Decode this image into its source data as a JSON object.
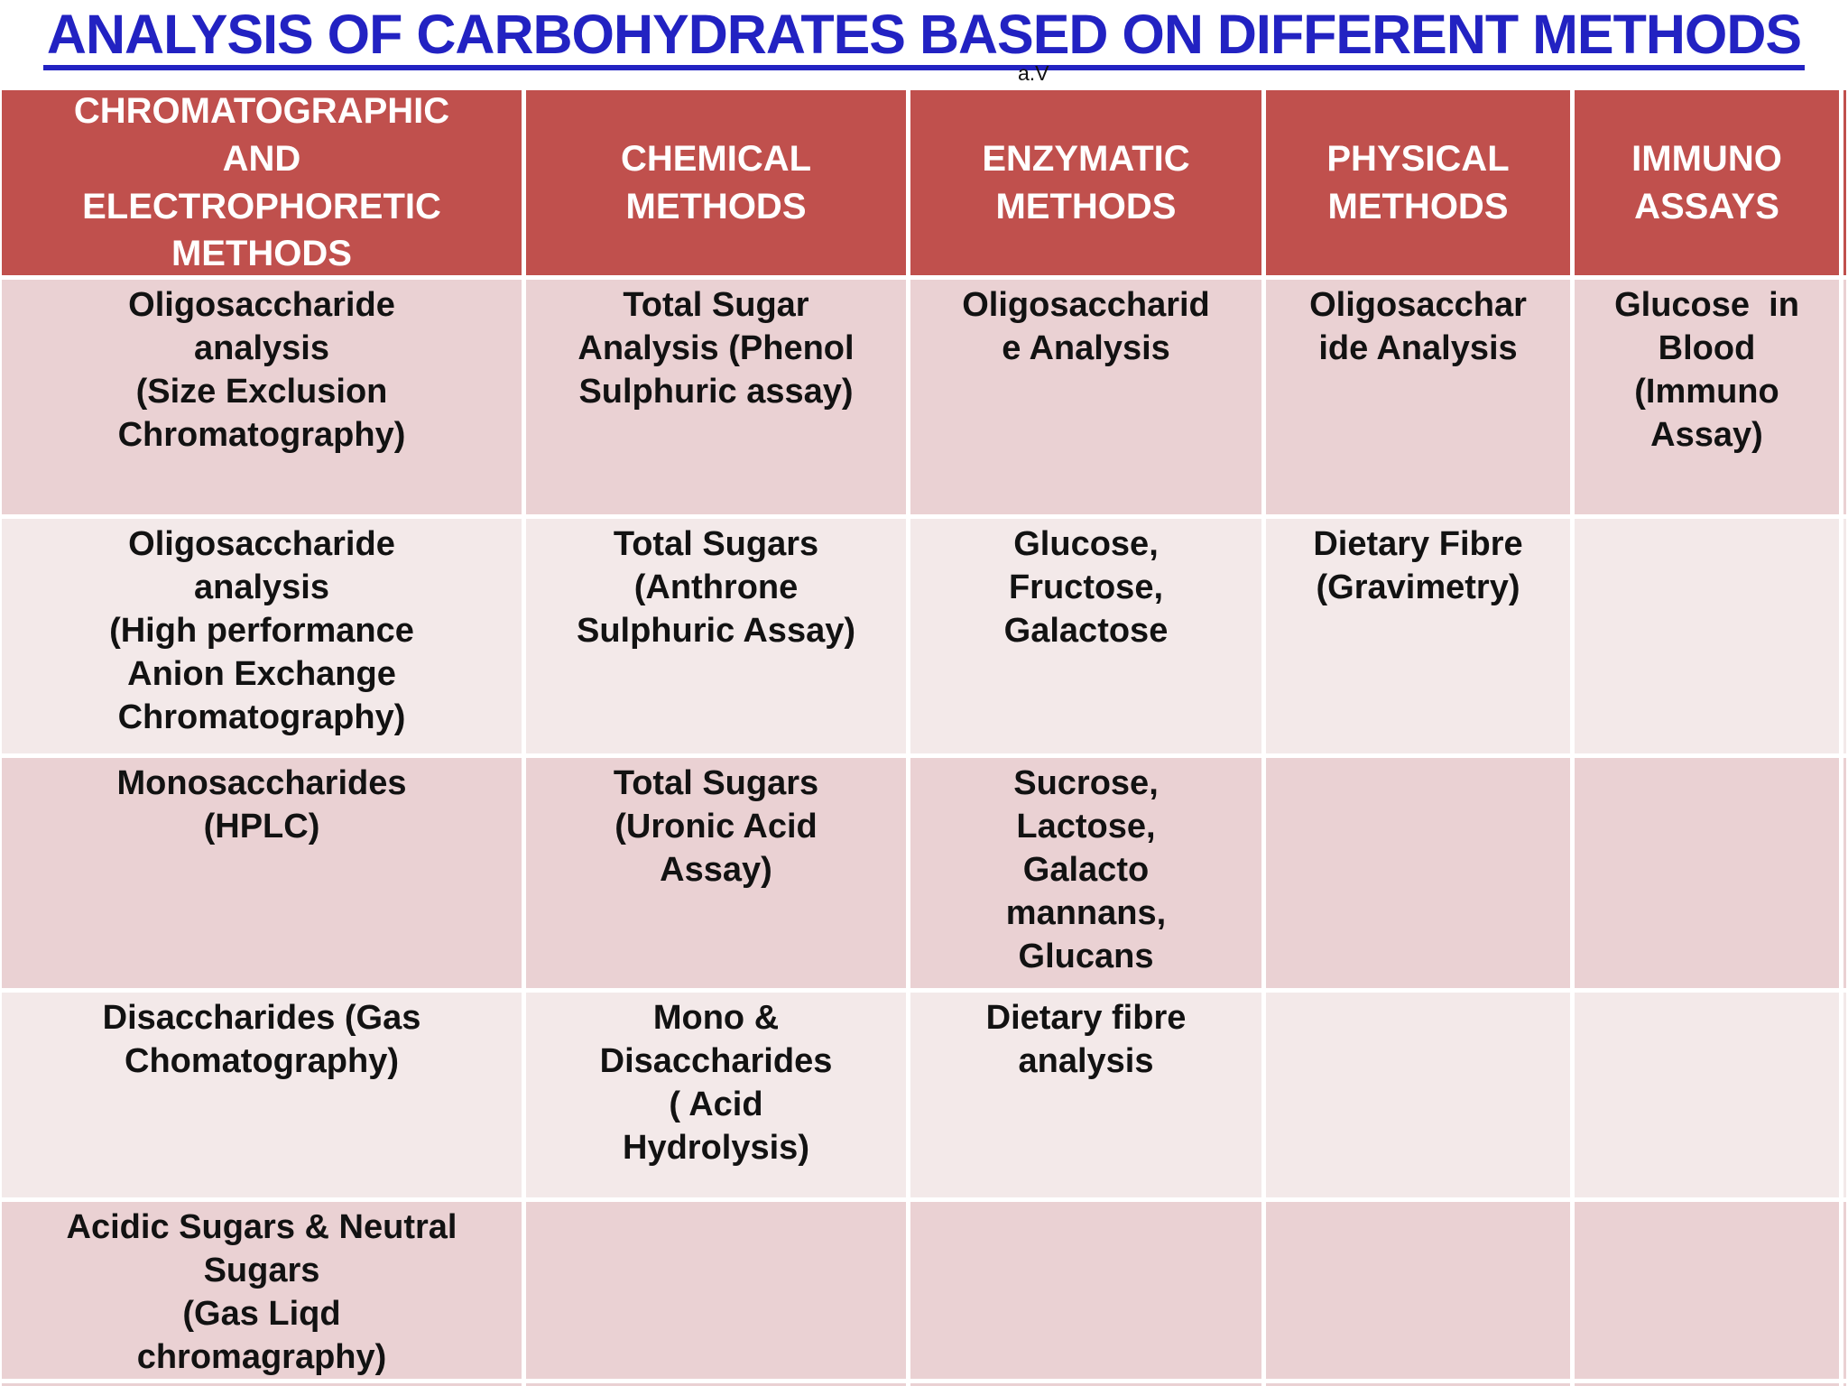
{
  "title": {
    "text": "ANALYSIS OF CARBOHYDRATES BASED ON DIFFERENT METHODS",
    "note": "a.V"
  },
  "colors": {
    "title": "#2222C2",
    "header_bg": "#C0504D",
    "header_text": "#FFFFFF",
    "row_dark_bg": "#EAD1D3",
    "row_light_bg": "#F3E9E9",
    "body_text": "#121212",
    "grid_line": "#FFFFFF"
  },
  "table": {
    "headers": [
      "CHROMATOGRAPHIC\nAND\nELECTROPHORETIC\nMETHODS",
      "CHEMICAL\nMETHODS",
      "ENZYMATIC\nMETHODS",
      "PHYSICAL\nMETHODS",
      "IMMUNO\nASSAYS"
    ],
    "rows": [
      {
        "cells": [
          "Oligosaccharide\nanalysis\n(Size Exclusion\nChromatography)",
          "Total Sugar\nAnalysis (Phenol\nSulphuric assay)",
          "Oligosaccharid\ne Analysis",
          "Oligosacchar\nide Analysis",
          "Glucose  in\nBlood\n(Immuno\nAssay)"
        ]
      },
      {
        "cells": [
          "Oligosaccharide\nanalysis\n(High performance\nAnion Exchange\nChromatography)",
          "Total Sugars\n(Anthrone\nSulphuric Assay)",
          "Glucose,\nFructose,\nGalactose",
          "Dietary Fibre\n(Gravimetry)",
          ""
        ]
      },
      {
        "cells": [
          "Monosaccharides\n(HPLC)",
          "Total Sugars\n(Uronic Acid\nAssay)",
          "Sucrose,\nLactose,\nGalacto\nmannans,\nGlucans",
          "",
          ""
        ]
      },
      {
        "cells": [
          "Disaccharides (Gas\nChomatography)",
          "Mono &\nDisaccharides\n( Acid\nHydrolysis)",
          "Dietary fibre\nanalysis",
          "",
          ""
        ]
      },
      {
        "cells": [
          "Acidic Sugars & Neutral\nSugars\n(Gas Liqd\nchromagraphy)",
          "",
          "",
          "",
          ""
        ]
      }
    ]
  }
}
